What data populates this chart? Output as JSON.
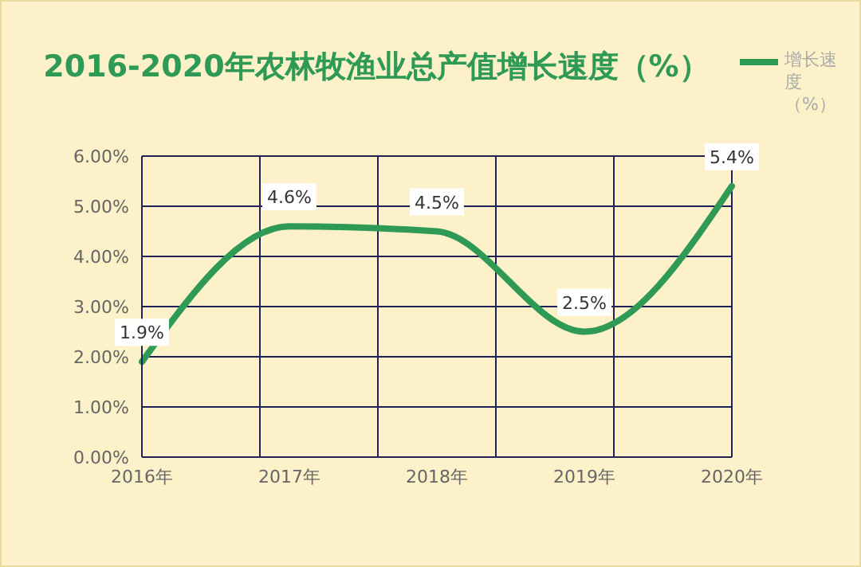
{
  "chart_data": {
    "type": "line",
    "title": "2016-2020年农林牧渔业总产值增长速度（%）",
    "categories": [
      "2016年",
      "2017年",
      "2018年",
      "2019年",
      "2020年"
    ],
    "series": [
      {
        "name": "增长速度（%）",
        "color": "#2e9a55",
        "values": [
          1.9,
          4.6,
          4.5,
          2.5,
          5.4
        ],
        "value_labels": [
          "1.9%",
          "4.6%",
          "4.5%",
          "2.5%",
          "5.4%"
        ]
      }
    ],
    "ylim": [
      0,
      6
    ],
    "yticks": [
      {
        "value": 0,
        "label": "0.00%"
      },
      {
        "value": 1,
        "label": "1.00%"
      },
      {
        "value": 2,
        "label": "2.00%"
      },
      {
        "value": 3,
        "label": "3.00%"
      },
      {
        "value": 4,
        "label": "4.00%"
      },
      {
        "value": 5,
        "label": "5.00%"
      },
      {
        "value": 6,
        "label": "6.00%"
      }
    ],
    "grid": true,
    "legend": "top right",
    "marker": "none",
    "line_style": "solid"
  }
}
